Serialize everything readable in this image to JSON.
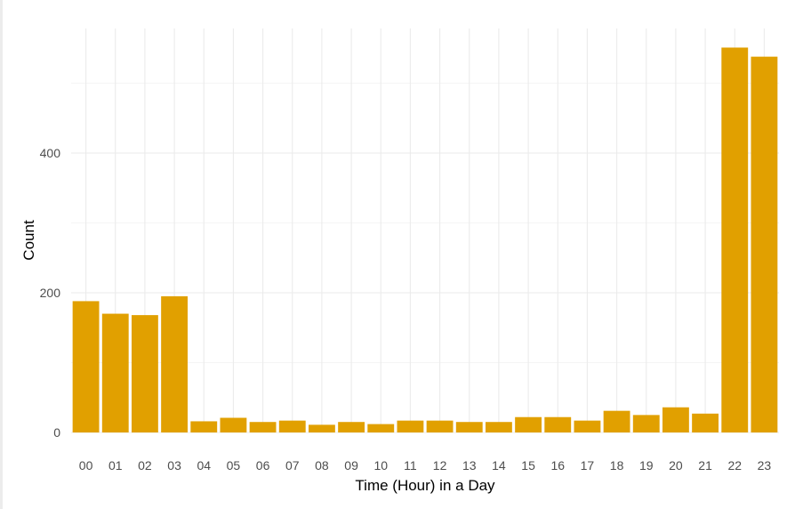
{
  "chart_data": {
    "type": "bar",
    "title": "",
    "xlabel": "Time (Hour) in a Day",
    "ylabel": "Count",
    "categories": [
      "00",
      "01",
      "02",
      "03",
      "04",
      "05",
      "06",
      "07",
      "08",
      "09",
      "10",
      "11",
      "12",
      "13",
      "14",
      "15",
      "16",
      "17",
      "18",
      "19",
      "20",
      "21",
      "22",
      "23"
    ],
    "values": [
      188,
      170,
      168,
      195,
      16,
      21,
      15,
      17,
      11,
      15,
      12,
      17,
      17,
      15,
      15,
      22,
      22,
      17,
      31,
      25,
      36,
      27,
      551,
      538
    ],
    "yticks": [
      0,
      200,
      400
    ],
    "ylim": [
      0,
      575
    ],
    "grid": true,
    "bar_color": "#E1A000",
    "grid_color": "#ebebeb"
  }
}
